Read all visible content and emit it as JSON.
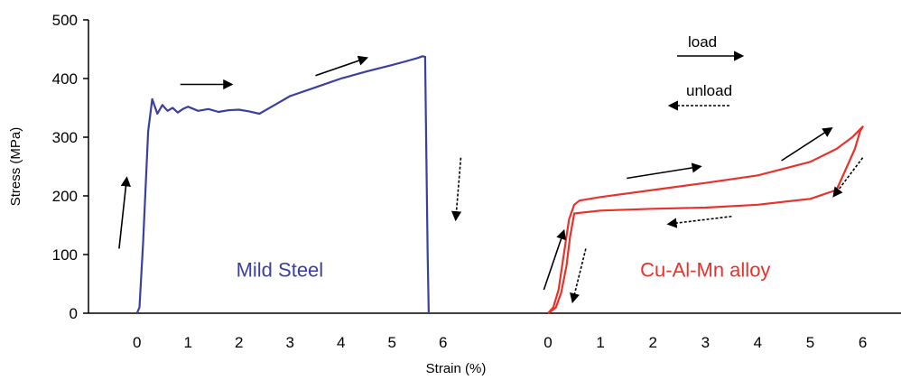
{
  "chart_data": {
    "type": "line",
    "xlabel": "Strain (%)",
    "ylabel": "Stress (MPa)",
    "ylim": [
      0,
      500
    ],
    "y_ticks": [
      0,
      100,
      200,
      300,
      400,
      500
    ],
    "grid": false,
    "legend": {
      "load_label": "load",
      "unload_label": "unload",
      "placement": "top-right"
    },
    "colors": {
      "steel": "#3b3f9e",
      "alloy": "#e8322c",
      "arrow": "#000000"
    },
    "panels": [
      {
        "x_ticks": [
          0,
          1,
          2,
          3,
          4,
          5,
          6
        ],
        "xlim": [
          -0.95,
          7.05
        ],
        "series": [
          {
            "name": "Mild Steel",
            "color": "#3b3f9e",
            "x": [
              0.0,
              0.05,
              0.12,
              0.22,
              0.3,
              0.4,
              0.5,
              0.6,
              0.7,
              0.8,
              0.9,
              1.0,
              1.2,
              1.4,
              1.6,
              1.8,
              2.0,
              2.2,
              2.4,
              2.5,
              2.7,
              3.0,
              3.5,
              4.0,
              4.5,
              5.0,
              5.3,
              5.5,
              5.6,
              5.65,
              5.67,
              5.7,
              5.72
            ],
            "y": [
              0,
              10,
              120,
              310,
              365,
              340,
              355,
              345,
              350,
              342,
              348,
              352,
              345,
              348,
              343,
              346,
              347,
              344,
              340,
              345,
              355,
              370,
              385,
              400,
              412,
              423,
              430,
              435,
              438,
              437,
              300,
              100,
              0
            ]
          }
        ],
        "annotations": [
          {
            "label": "Mild Steel",
            "x": 2.8,
            "y": 75,
            "color": "#3b3f9e"
          }
        ],
        "arrows": [
          {
            "kind": "load",
            "from": [
              -0.35,
              110
            ],
            "to": [
              -0.2,
              230
            ]
          },
          {
            "kind": "load",
            "from": [
              0.85,
              390
            ],
            "to": [
              1.85,
              390
            ]
          },
          {
            "kind": "load",
            "from": [
              3.5,
              405
            ],
            "to": [
              4.5,
              435
            ]
          },
          {
            "kind": "unload",
            "from": [
              6.35,
              265
            ],
            "to": [
              6.25,
              160
            ]
          }
        ]
      },
      {
        "x_ticks": [
          0,
          1,
          2,
          3,
          4,
          5,
          6
        ],
        "xlim": [
          -0.5,
          6.73
        ],
        "series": [
          {
            "name": "Cu-Al-Mn alloy",
            "color": "#e8322c",
            "x": [
              0.0,
              0.1,
              0.2,
              0.3,
              0.4,
              0.5,
              0.6,
              1.0,
              2.0,
              3.0,
              4.0,
              5.0,
              5.5,
              5.8,
              6.0,
              5.95,
              5.85,
              5.6,
              5.5,
              5.0,
              4.0,
              3.0,
              2.0,
              1.0,
              0.5,
              0.42,
              0.35,
              0.25,
              0.15,
              0.05,
              0.0
            ],
            "y": [
              0,
              10,
              40,
              100,
              160,
              185,
              192,
              198,
              210,
              222,
              235,
              258,
              280,
              300,
              318,
              310,
              280,
              230,
              210,
              195,
              185,
              180,
              178,
              175,
              170,
              130,
              80,
              35,
              10,
              3,
              0
            ]
          }
        ],
        "annotations": [
          {
            "label": "Cu-Al-Mn alloy",
            "x": 3.0,
            "y": 75,
            "color": "#e8322c"
          }
        ],
        "arrows": [
          {
            "kind": "load",
            "from": [
              -0.08,
              40
            ],
            "to": [
              0.3,
              140
            ]
          },
          {
            "kind": "load",
            "from": [
              1.5,
              230
            ],
            "to": [
              2.9,
              250
            ]
          },
          {
            "kind": "load",
            "from": [
              4.45,
              260
            ],
            "to": [
              5.4,
              315
            ]
          },
          {
            "kind": "unload",
            "from": [
              6.0,
              265
            ],
            "to": [
              5.45,
              200
            ]
          },
          {
            "kind": "unload",
            "from": [
              3.5,
              165
            ],
            "to": [
              2.3,
              152
            ]
          },
          {
            "kind": "unload",
            "from": [
              0.72,
              110
            ],
            "to": [
              0.47,
              20
            ]
          }
        ]
      }
    ]
  }
}
